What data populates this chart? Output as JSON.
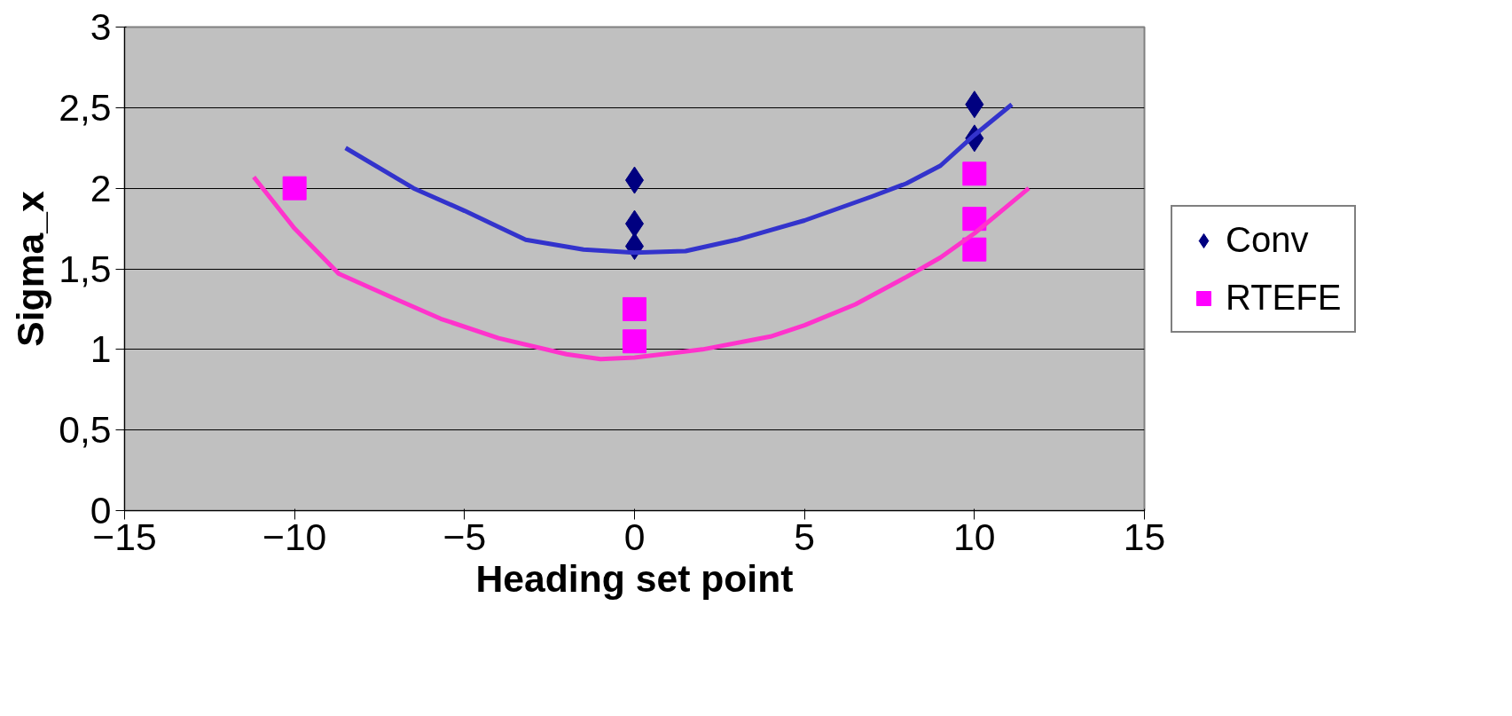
{
  "chart_data": {
    "type": "scatter",
    "xlabel": "Heading set point",
    "ylabel": "Sigma_x",
    "xlim": [
      -15,
      15
    ],
    "xticks": [
      -15,
      -10,
      -5,
      0,
      5,
      10,
      15
    ],
    "ylim": [
      0,
      3
    ],
    "yticks": [
      {
        "value": 0,
        "label": "0"
      },
      {
        "value": 0.5,
        "label": "0,5"
      },
      {
        "value": 1,
        "label": "1"
      },
      {
        "value": 1.5,
        "label": "1,5"
      },
      {
        "value": 2,
        "label": "2"
      },
      {
        "value": 2.5,
        "label": "2,5"
      },
      {
        "value": 3,
        "label": "3"
      }
    ],
    "grid": "y",
    "legend": "right",
    "series": [
      {
        "name": "Conv",
        "marker": "diamond",
        "color": "#000080",
        "x": [
          0,
          0,
          0,
          10,
          10
        ],
        "values": [
          2.05,
          1.78,
          1.64,
          2.52,
          2.31
        ]
      },
      {
        "name": "RTEFE",
        "marker": "square",
        "color": "#ff00ff",
        "x": [
          -10,
          0,
          0,
          10,
          10,
          10
        ],
        "values": [
          2.0,
          1.25,
          1.05,
          2.09,
          1.81,
          1.62
        ]
      },
      {
        "type": "line",
        "color": "#3333cc",
        "x": [
          -8.5,
          -6.5,
          -5,
          -3.2,
          -1.5,
          0,
          1.5,
          3,
          5,
          7,
          8,
          9,
          10,
          11.1
        ],
        "values": [
          2.25,
          2.0,
          1.86,
          1.68,
          1.62,
          1.6,
          1.61,
          1.68,
          1.8,
          1.95,
          2.03,
          2.14,
          2.33,
          2.52
        ]
      },
      {
        "type": "line",
        "color": "#ff33cc",
        "x": [
          -11.2,
          -10,
          -8.7,
          -7,
          -5.7,
          -4,
          -2,
          -1,
          0,
          2,
          4,
          5,
          6.5,
          8,
          9,
          10,
          11.6
        ],
        "values": [
          2.07,
          1.75,
          1.47,
          1.31,
          1.19,
          1.07,
          0.97,
          0.94,
          0.95,
          1.0,
          1.08,
          1.15,
          1.28,
          1.45,
          1.57,
          1.72,
          2.0
        ]
      }
    ]
  }
}
